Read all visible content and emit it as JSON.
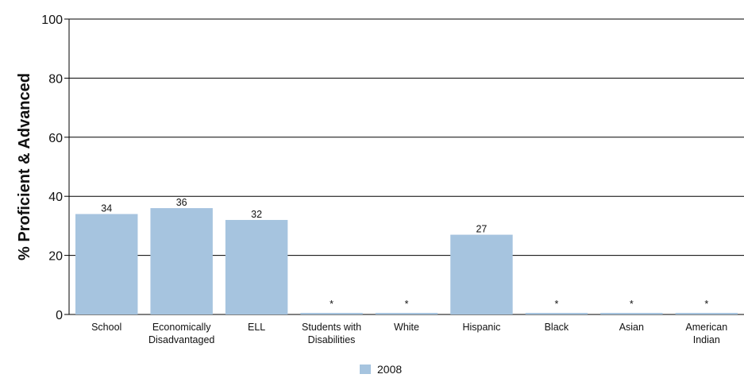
{
  "chart_data": {
    "type": "bar",
    "ylabel": "% Proficient & Advanced",
    "ylim": [
      0,
      100
    ],
    "yticks": [
      0,
      20,
      40,
      60,
      80,
      100
    ],
    "grid": true,
    "legend_position": "bottom-center",
    "categories": [
      [
        "School"
      ],
      [
        "Economically",
        "Disadvantaged"
      ],
      [
        "ELL"
      ],
      [
        "Students with",
        "Disabilities"
      ],
      [
        "White"
      ],
      [
        "Hispanic"
      ],
      [
        "Black"
      ],
      [
        "Asian"
      ],
      [
        "American",
        "Indian"
      ]
    ],
    "series": [
      {
        "name": "2008",
        "color": "#a6c4df",
        "values": [
          34,
          36,
          32,
          null,
          null,
          27,
          null,
          null,
          null
        ],
        "labels": [
          "34",
          "36",
          "32",
          "*",
          "*",
          "27",
          "*",
          "*",
          "*"
        ]
      }
    ]
  }
}
